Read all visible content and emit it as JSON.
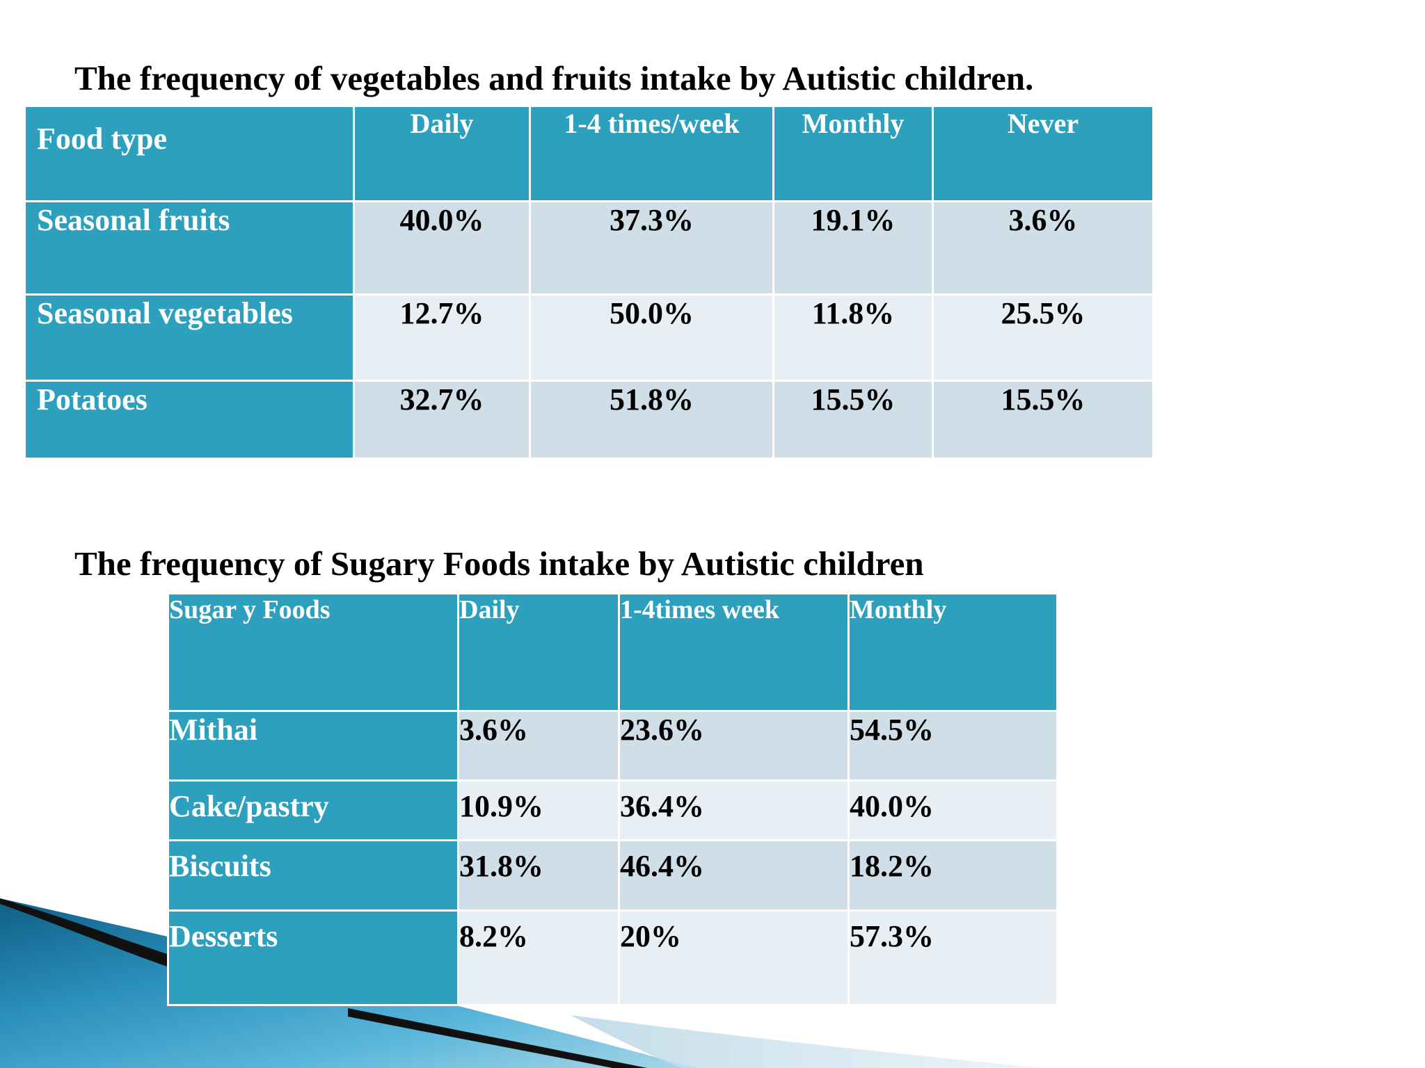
{
  "table1": {
    "title": "The frequency of vegetables and fruits intake by Autistic children.",
    "headers": [
      "Food type",
      "Daily",
      "1-4 times/week",
      "Monthly",
      "Never"
    ],
    "rows": [
      [
        "Seasonal fruits",
        "40.0%",
        "37.3%",
        "19.1%",
        "3.6%"
      ],
      [
        "Seasonal vegetables",
        "12.7%",
        "50.0%",
        "11.8%",
        "25.5%"
      ],
      [
        "Potatoes",
        "32.7%",
        "51.8%",
        "15.5%",
        "15.5%"
      ]
    ]
  },
  "table2": {
    "title": "The frequency of Sugary Foods  intake by Autistic children",
    "headers": [
      "Sugar y Foods",
      "Daily",
      "1-4times week",
      "Monthly"
    ],
    "rows": [
      [
        "Mithai",
        "3.6%",
        "23.6%",
        "54.5%"
      ],
      [
        "Cake/pastry",
        "10.9%",
        "36.4%",
        "40.0%"
      ],
      [
        "Biscuits",
        "31.8%",
        "46.4%",
        "18.2%"
      ],
      [
        "Desserts",
        "8.2%",
        "20%",
        "57.3%"
      ]
    ]
  },
  "colors": {
    "header_fill": "#2ca0bd",
    "row_fill_odd": "#d0dfe7",
    "row_fill_even": "#e8eff4",
    "decor_blue": "#1f7fa8",
    "decor_black": "#111111"
  }
}
